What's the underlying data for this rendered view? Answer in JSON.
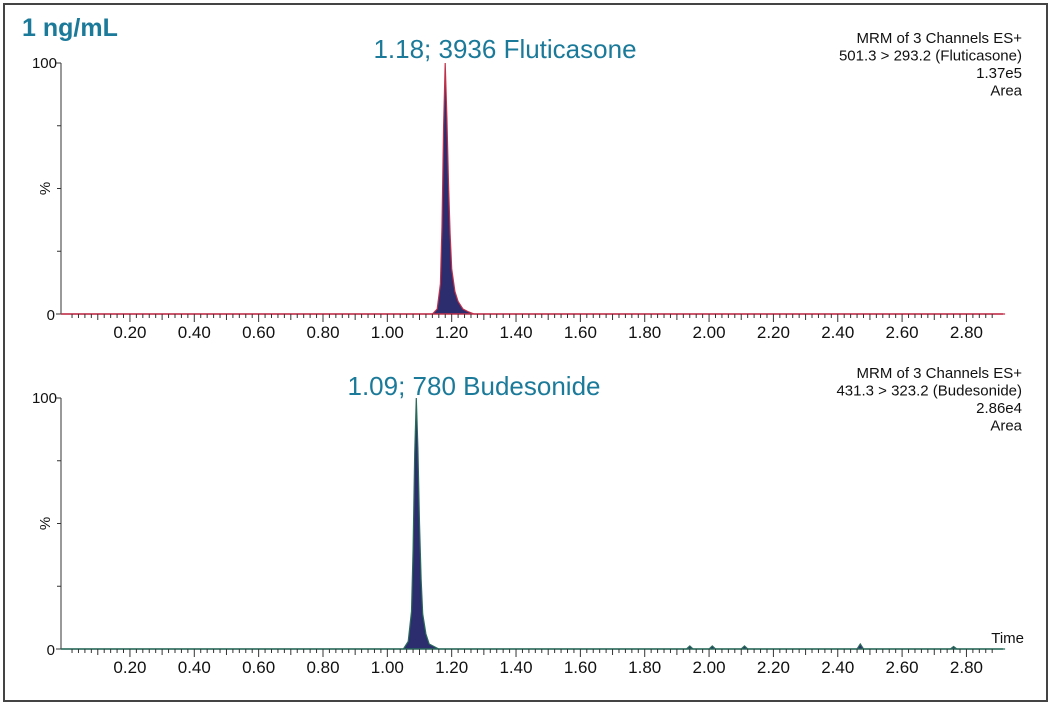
{
  "concentration_label": "1 ng/mL",
  "colors": {
    "label": "#1b7a99",
    "fill": "#2b2d6e",
    "top_line": "#c0304a",
    "bottom_line": "#2a6a5a",
    "axis": "#333333"
  },
  "chart_data": [
    {
      "type": "area",
      "peak_label": "1.18; 3936 Fluticasone",
      "info": [
        "MRM of 3 Channels ES+",
        "501.3 > 293.2 (Fluticasone)",
        "1.37e5",
        "Area"
      ],
      "ylabel": "%",
      "xlabel": "",
      "xlim": [
        0.0,
        2.92
      ],
      "ylim": [
        0,
        100
      ],
      "y_ticks": [
        "0",
        "100"
      ],
      "x_ticks": [
        "0.20",
        "0.40",
        "0.60",
        "0.80",
        "1.00",
        "1.20",
        "1.40",
        "1.60",
        "1.80",
        "2.00",
        "2.20",
        "2.40",
        "2.60",
        "2.80"
      ],
      "x": [
        0.0,
        1.14,
        1.155,
        1.165,
        1.17,
        1.175,
        1.18,
        1.185,
        1.19,
        1.195,
        1.2,
        1.21,
        1.22,
        1.235,
        1.25,
        1.27,
        2.92
      ],
      "y": [
        0,
        0,
        2,
        12,
        35,
        75,
        100,
        78,
        52,
        32,
        18,
        9,
        5,
        2,
        1,
        0,
        0
      ]
    },
    {
      "type": "area",
      "peak_label": "1.09; 780 Budesonide",
      "info": [
        "MRM of 3 Channels ES+",
        "431.3 > 323.2 (Budesonide)",
        "2.86e4",
        "Area"
      ],
      "ylabel": "%",
      "xlabel": "Time",
      "xlim": [
        0.0,
        2.92
      ],
      "ylim": [
        0,
        100
      ],
      "y_ticks": [
        "0",
        "100"
      ],
      "x_ticks": [
        "0.20",
        "0.40",
        "0.60",
        "0.80",
        "1.00",
        "1.20",
        "1.40",
        "1.60",
        "1.80",
        "2.00",
        "2.20",
        "2.40",
        "2.60",
        "2.80"
      ],
      "x": [
        0.0,
        1.05,
        1.065,
        1.075,
        1.08,
        1.085,
        1.09,
        1.095,
        1.1,
        1.105,
        1.11,
        1.12,
        1.13,
        1.145,
        1.16,
        1.93,
        1.94,
        1.95,
        2.0,
        2.01,
        2.02,
        2.1,
        2.11,
        2.12,
        2.46,
        2.47,
        2.48,
        2.75,
        2.76,
        2.77,
        2.92
      ],
      "y": [
        0,
        0,
        3,
        15,
        40,
        78,
        100,
        80,
        50,
        28,
        14,
        6,
        2,
        1,
        0,
        0,
        1.2,
        0,
        0,
        1.2,
        0,
        0,
        1.2,
        0,
        0,
        2,
        0,
        0,
        1,
        0,
        0
      ]
    }
  ]
}
